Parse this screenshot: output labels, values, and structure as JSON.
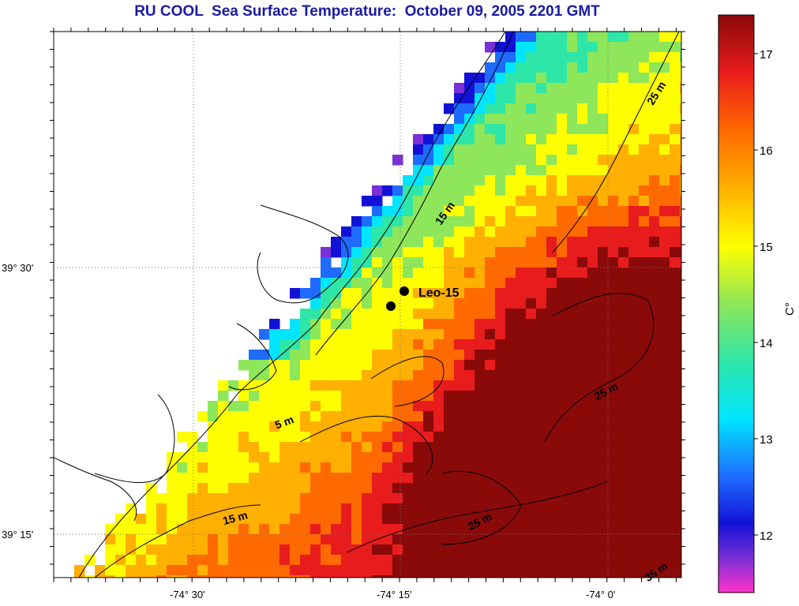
{
  "title": "RU COOL  Sea Surface Temperature:  October 09, 2005 2201 GMT",
  "station_label": "Leo-15",
  "lat_labels": [
    "39° 30'",
    "39° 15'"
  ],
  "lon_labels": [
    "-74° 30'",
    "-74° 15'",
    "-74° 0'"
  ],
  "contour_labels": [
    "15 m",
    "25 m",
    "5 m",
    "25 m",
    "15 m",
    "25 m",
    "35 m"
  ],
  "colorbar": {
    "unit": "C°",
    "ticks": [
      "17",
      "16",
      "15",
      "14",
      "13",
      "12"
    ],
    "range": [
      11.5,
      17.4
    ],
    "colors": [
      "#ff33cc",
      "#7b2fd6",
      "#1212d6",
      "#1e6bff",
      "#00e5ff",
      "#2ee6a8",
      "#8ee65a",
      "#ffff00",
      "#ffb000",
      "#ff6a00",
      "#e81c1c",
      "#8a0a0a"
    ]
  },
  "chart_data": {
    "type": "heatmap",
    "title": "RU COOL  Sea Surface Temperature:  October 09, 2005 2201 GMT",
    "units": "C°",
    "value_range": [
      11.5,
      17.4
    ],
    "latitude_ticks": [
      "39° 30'",
      "39° 15'"
    ],
    "longitude_ticks": [
      "-74° 30'",
      "-74° 15'",
      "-74° 0'"
    ],
    "station": "Leo-15"
  }
}
